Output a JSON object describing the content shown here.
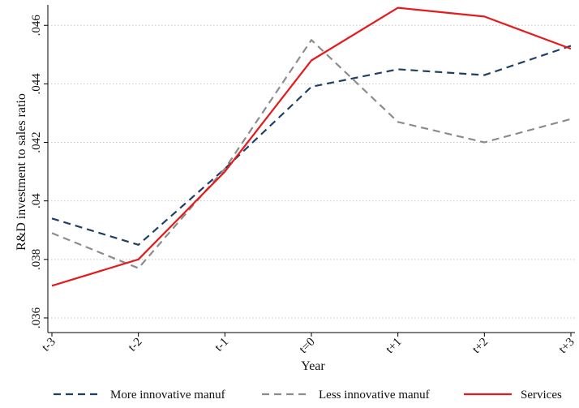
{
  "chart_data": {
    "type": "line",
    "title": "",
    "xlabel": "Year",
    "ylabel": "R&D investment to sales ratio",
    "categories": [
      "t-3",
      "t-2",
      "t-1",
      "t=0",
      "t+1",
      "t+2",
      "t+3"
    ],
    "ylim": [
      0.0355,
      0.0467
    ],
    "yticks": [
      0.036,
      0.038,
      0.04,
      0.042,
      0.044,
      0.046
    ],
    "ytick_labels": [
      ".036",
      ".038",
      ".04",
      ".042",
      ".044",
      ".046"
    ],
    "grid": true,
    "legend_position": "bottom",
    "series": [
      {
        "name": "More innovative manuf",
        "color": "#1f3f66",
        "dash": "dashed",
        "values": [
          0.0394,
          0.0385,
          0.0411,
          0.0439,
          0.0445,
          0.0443,
          0.0453
        ]
      },
      {
        "name": "Less innovative manuf",
        "color": "#8c8c8c",
        "dash": "dashed",
        "values": [
          0.0389,
          0.0377,
          0.0411,
          0.0455,
          0.0427,
          0.042,
          0.0428
        ]
      },
      {
        "name": "Services",
        "color": "#e41a1c",
        "dash": "solid",
        "values": [
          0.0371,
          0.038,
          0.041,
          0.0448,
          0.0466,
          0.0463,
          0.0452
        ]
      }
    ]
  }
}
